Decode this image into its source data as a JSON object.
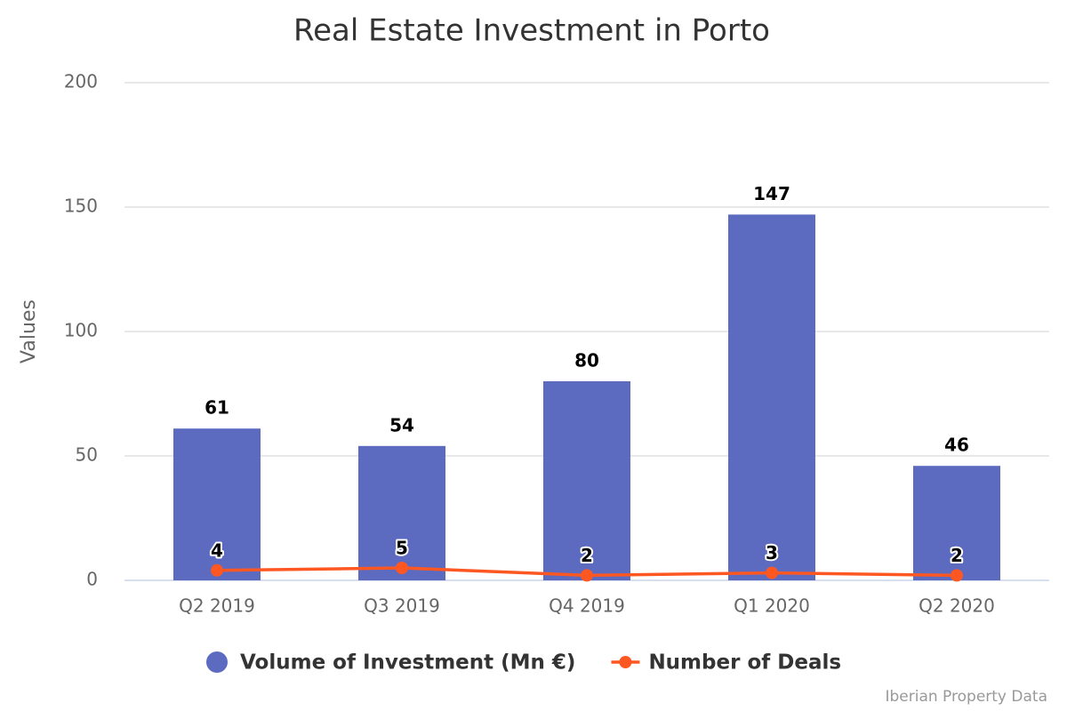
{
  "chart_data": {
    "type": "bar",
    "title": "Real Estate Investment in Porto",
    "y_label": "Values",
    "credit": "Iberian Property Data",
    "categories": [
      "Q2 2019",
      "Q3 2019",
      "Q4 2019",
      "Q1 2020",
      "Q2 2020"
    ],
    "series": [
      {
        "name": "Volume of Investment (Mn €)",
        "type": "bar",
        "color": "#5c6bc0",
        "values": [
          61,
          54,
          80,
          147,
          46
        ]
      },
      {
        "name": "Number of Deals",
        "type": "line",
        "color": "#ff5722",
        "values": [
          4,
          5,
          2,
          3,
          2
        ]
      }
    ],
    "ylim": [
      0,
      200
    ],
    "yticks": [
      0,
      50,
      100,
      150,
      200
    ],
    "grid": true,
    "legend": "bottom"
  }
}
